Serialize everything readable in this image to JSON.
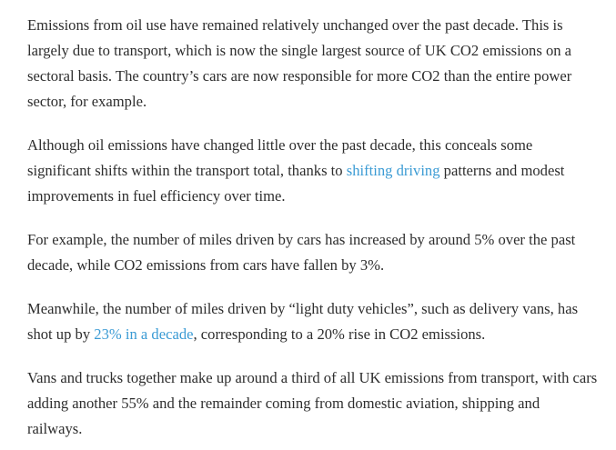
{
  "article": {
    "p1": "Emissions from oil use have remained relatively unchanged over the past decade. This is largely due to transport, which is now the single largest source of UK CO2 emissions on a sectoral basis. The country’s cars are now responsible for more CO2 than the entire power sector, for example.",
    "p2_before": "Although oil emissions have changed little over the past decade, this conceals some significant shifts within the transport total, thanks to ",
    "p2_link": "shifting driving",
    "p2_after": " patterns and modest improvements in fuel efficiency over time.",
    "p3": "For example, the number of miles driven by cars has increased by around 5% over the past decade, while CO2 emissions from cars have fallen by 3%.",
    "p4_before": "Meanwhile, the number of miles driven by “light duty vehicles”, such as delivery vans, has shot up by ",
    "p4_link": "23% in a decade",
    "p4_after": ", corresponding to a 20% rise in CO2 emissions.",
    "p5": "Vans and trucks together make up around a third of all UK emissions from transport, with cars adding another 55% and the remainder coming from domestic aviation, shipping and railways."
  },
  "colors": {
    "text": "#2d2d2d",
    "link": "#3b9bd4",
    "background": "#ffffff"
  }
}
